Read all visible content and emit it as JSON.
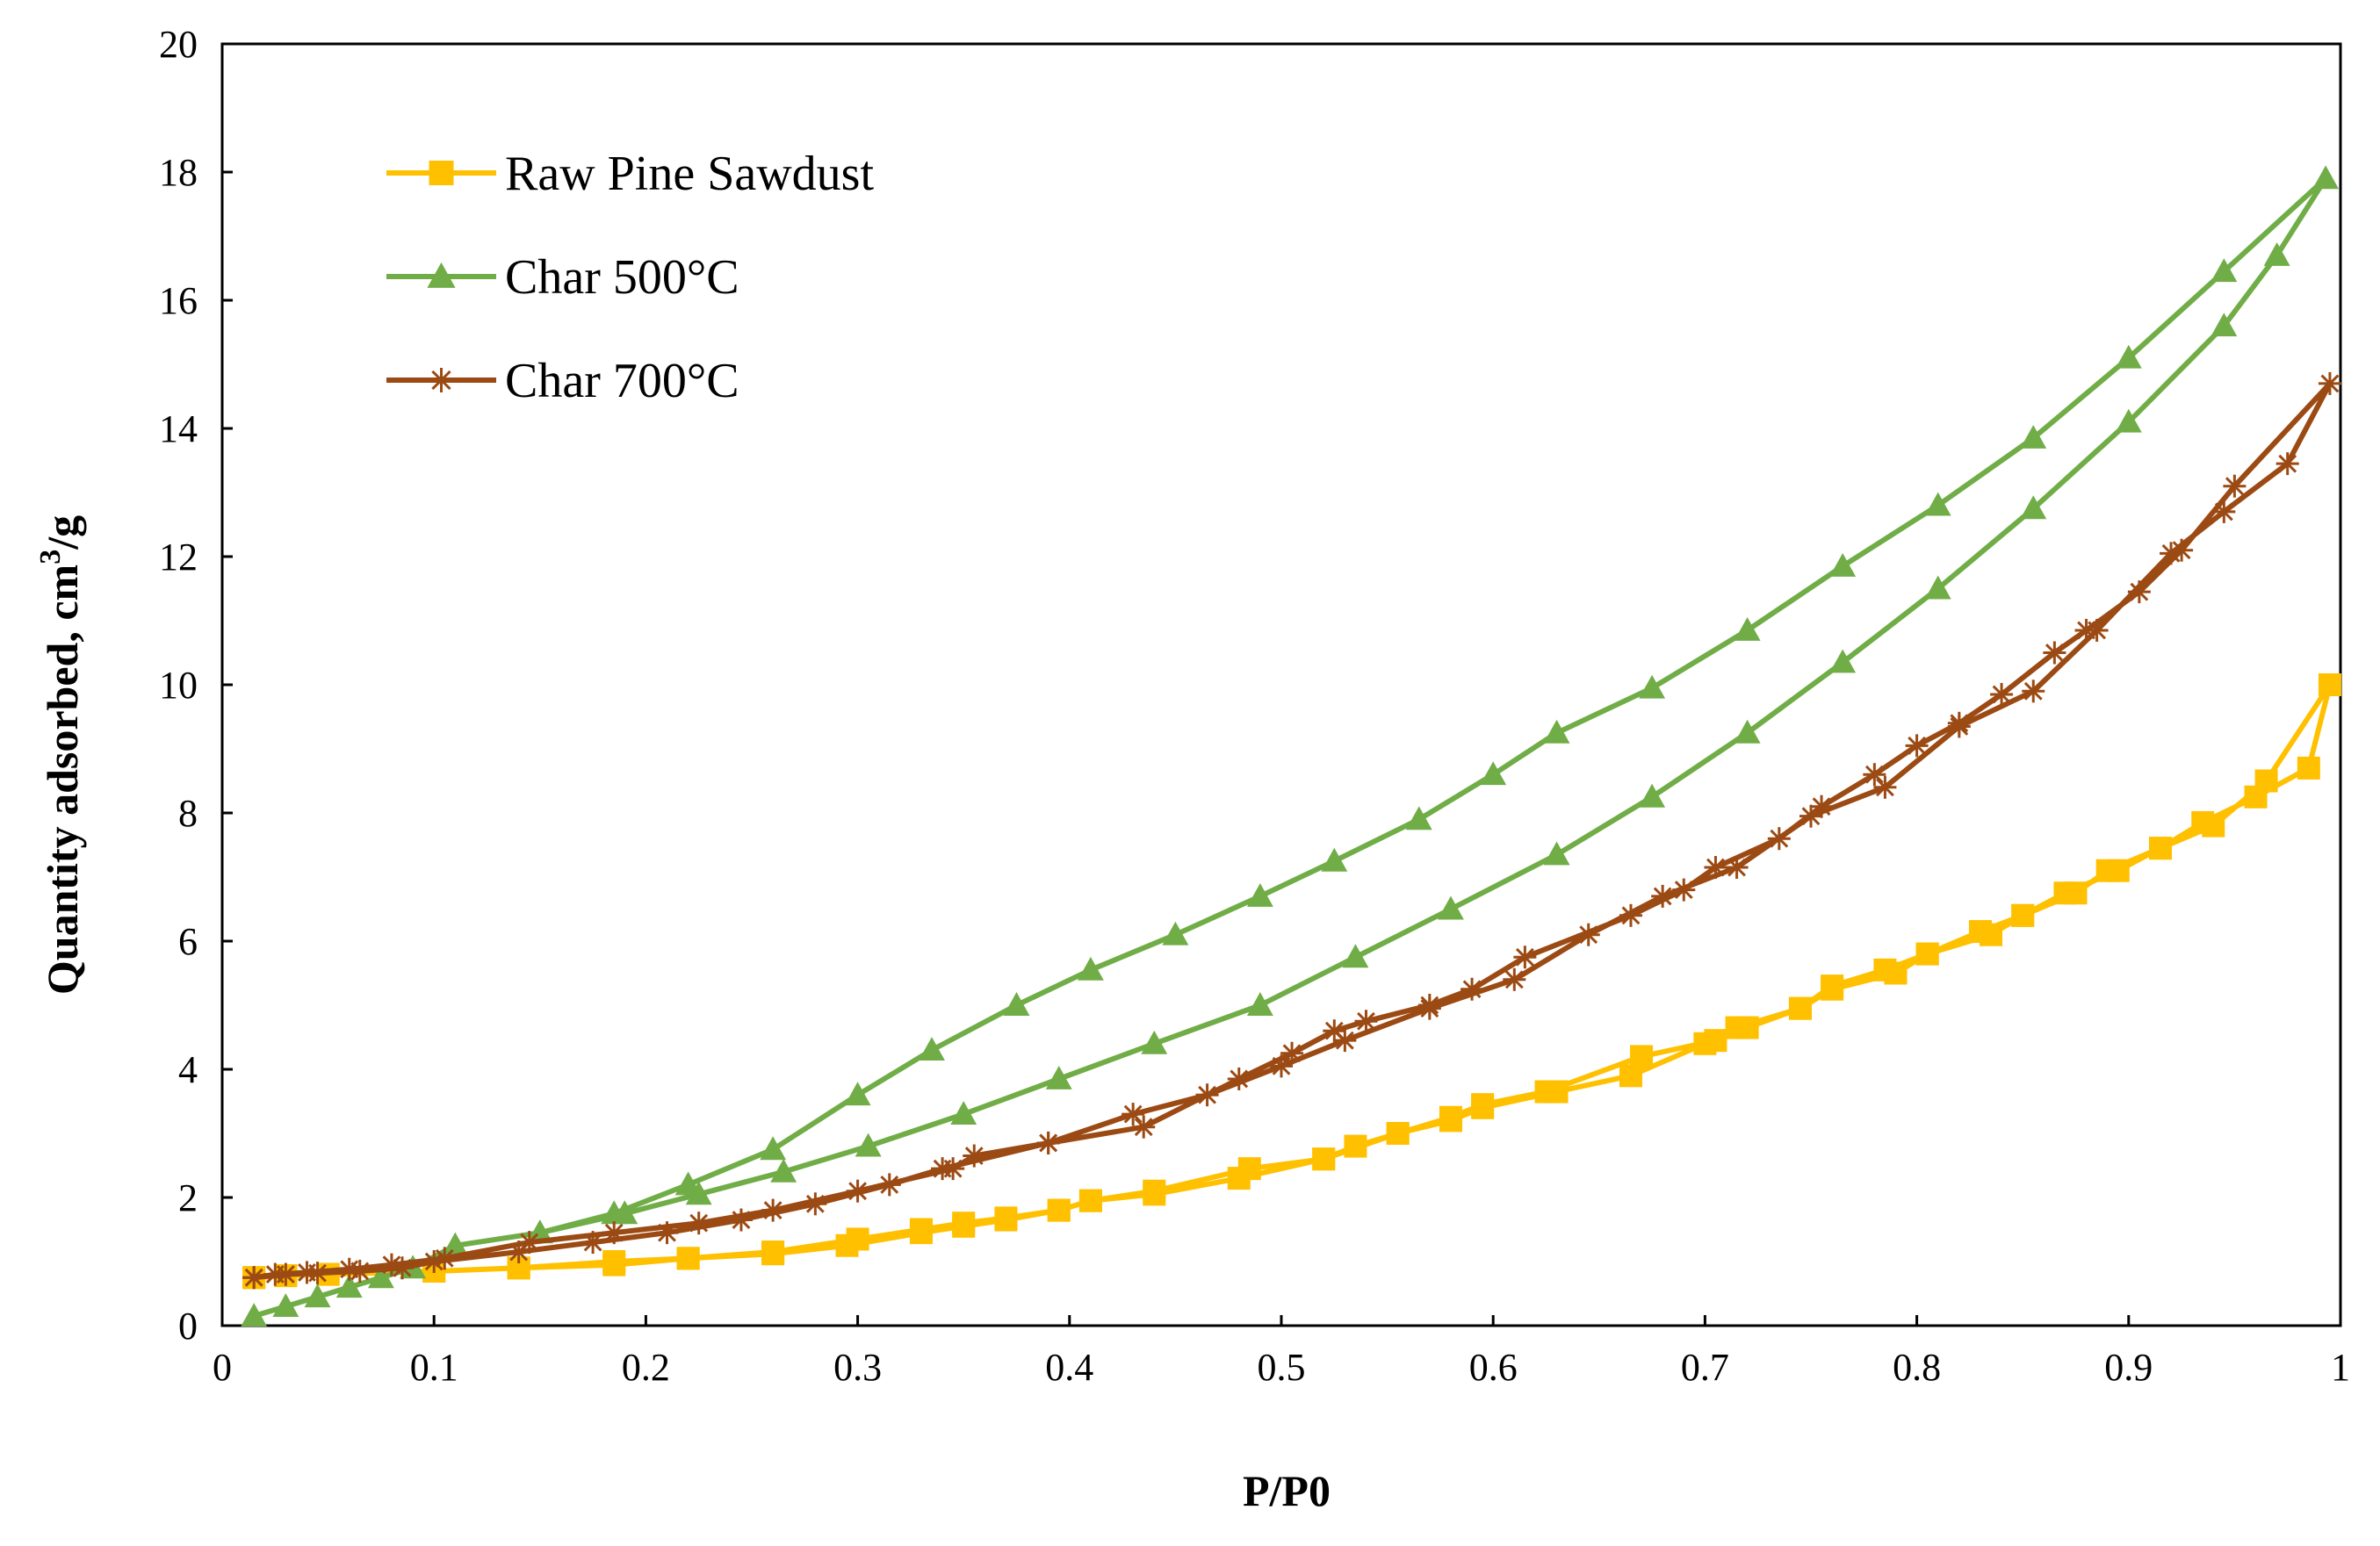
{
  "chart_data": {
    "type": "line",
    "title": "",
    "xlabel": "P/P0",
    "ylabel": "Quantity adsorbed, cm",
    "ylabel_sup": "3",
    "ylabel_suffix": "/g",
    "xlim": [
      0,
      1
    ],
    "ylim": [
      0,
      20
    ],
    "xticks": [
      0,
      0.1,
      0.2,
      0.3,
      0.4,
      0.5,
      0.6,
      0.7,
      0.8,
      0.9,
      1
    ],
    "xtick_labels": [
      "0",
      "0.1",
      "0.2",
      "0.3",
      "0.4",
      "0.5",
      "0.6",
      "0.7",
      "0.8",
      "0.9",
      "1"
    ],
    "yticks": [
      0,
      2,
      4,
      6,
      8,
      10,
      12,
      14,
      16,
      18,
      20
    ],
    "ytick_labels": [
      "0",
      "2",
      "4",
      "6",
      "8",
      "10",
      "12",
      "14",
      "16",
      "18",
      "20"
    ],
    "grid": false,
    "legend_position": "top-left",
    "series": [
      {
        "name": "Raw Pine Sawdust",
        "color": "#FFC000",
        "marker": "square",
        "x": [
          0.015,
          0.03,
          0.05,
          0.1,
          0.14,
          0.185,
          0.22,
          0.26,
          0.3,
          0.33,
          0.35,
          0.37,
          0.395,
          0.41,
          0.44,
          0.485,
          0.52,
          0.535,
          0.555,
          0.58,
          0.595,
          0.625,
          0.67,
          0.705,
          0.72,
          0.745,
          0.76,
          0.79,
          0.805,
          0.835,
          0.85,
          0.875,
          0.89,
          0.915,
          0.935,
          0.96,
          0.985,
          0.995,
          0.965,
          0.94,
          0.915,
          0.895,
          0.87,
          0.85,
          0.83,
          0.805,
          0.785,
          0.76,
          0.745,
          0.715,
          0.7,
          0.665,
          0.63,
          0.595,
          0.58,
          0.555,
          0.52,
          0.48,
          0.44,
          0.41,
          0.395,
          0.37,
          0.35,
          0.33,
          0.295,
          0.26,
          0.22,
          0.185,
          0.14,
          0.1,
          0.05,
          0.03,
          0.015
        ],
        "y": [
          0.75,
          0.78,
          0.8,
          0.85,
          0.9,
          1.0,
          1.05,
          1.15,
          1.35,
          1.5,
          1.6,
          1.68,
          1.8,
          1.95,
          2.1,
          2.45,
          2.6,
          2.8,
          3.0,
          3.25,
          3.45,
          3.65,
          4.2,
          4.45,
          4.65,
          4.95,
          5.25,
          5.5,
          5.8,
          6.1,
          6.4,
          6.75,
          7.1,
          7.45,
          7.85,
          8.25,
          8.7,
          10.0,
          8.5,
          7.8,
          7.45,
          7.1,
          6.75,
          6.4,
          6.15,
          5.8,
          5.55,
          5.3,
          4.95,
          4.65,
          4.4,
          3.9,
          3.65,
          3.4,
          3.2,
          3.0,
          2.6,
          2.3,
          2.05,
          1.95,
          1.8,
          1.65,
          1.55,
          1.45,
          1.25,
          1.12,
          1.05,
          0.95,
          0.9,
          0.85,
          0.8,
          0.78,
          0.75
        ]
      },
      {
        "name": "Char 500°C",
        "color": "#70AD47",
        "marker": "triangle",
        "x": [
          0.015,
          0.03,
          0.045,
          0.06,
          0.075,
          0.09,
          0.11,
          0.15,
          0.19,
          0.225,
          0.265,
          0.305,
          0.35,
          0.395,
          0.44,
          0.49,
          0.535,
          0.58,
          0.63,
          0.675,
          0.72,
          0.765,
          0.81,
          0.855,
          0.9,
          0.945,
          0.97,
          0.993,
          0.945,
          0.9,
          0.855,
          0.81,
          0.765,
          0.72,
          0.675,
          0.63,
          0.6,
          0.565,
          0.525,
          0.49,
          0.45,
          0.41,
          0.375,
          0.335,
          0.3,
          0.26,
          0.22,
          0.185,
          0.15,
          0.11
        ],
        "y": [
          0.15,
          0.3,
          0.45,
          0.6,
          0.75,
          0.9,
          1.25,
          1.45,
          1.75,
          2.05,
          2.4,
          2.8,
          3.3,
          3.85,
          4.4,
          5.0,
          5.75,
          6.5,
          7.35,
          8.25,
          9.25,
          10.35,
          11.5,
          12.75,
          14.1,
          15.6,
          16.7,
          17.9,
          16.45,
          15.1,
          13.85,
          12.8,
          11.85,
          10.85,
          9.95,
          9.25,
          8.6,
          7.9,
          7.25,
          6.7,
          6.1,
          5.55,
          5.0,
          4.3,
          3.6,
          2.75,
          2.2,
          1.75,
          1.45,
          1.25
        ]
      },
      {
        "name": "Char 700°C",
        "color": "#9C4A14",
        "marker": "star",
        "x": [
          0.015,
          0.03,
          0.045,
          0.065,
          0.085,
          0.1,
          0.14,
          0.175,
          0.21,
          0.245,
          0.28,
          0.315,
          0.34,
          0.39,
          0.43,
          0.465,
          0.5,
          0.53,
          0.57,
          0.61,
          0.645,
          0.68,
          0.715,
          0.75,
          0.785,
          0.82,
          0.855,
          0.885,
          0.92,
          0.945,
          0.975,
          0.995,
          0.95,
          0.925,
          0.905,
          0.88,
          0.865,
          0.84,
          0.82,
          0.8,
          0.78,
          0.755,
          0.735,
          0.705,
          0.69,
          0.665,
          0.615,
          0.59,
          0.57,
          0.54,
          0.525,
          0.505,
          0.48,
          0.435,
          0.39,
          0.355,
          0.345,
          0.3,
          0.26,
          0.225,
          0.185,
          0.145,
          0.105,
          0.08,
          0.06,
          0.04,
          0.025,
          0.015
        ],
        "y": [
          0.75,
          0.8,
          0.82,
          0.85,
          0.9,
          1.0,
          1.15,
          1.3,
          1.45,
          1.65,
          1.9,
          2.2,
          2.45,
          2.85,
          3.3,
          3.6,
          4.05,
          4.45,
          4.95,
          5.4,
          6.1,
          6.7,
          7.15,
          7.95,
          8.4,
          9.35,
          9.9,
          10.85,
          12.05,
          12.7,
          13.45,
          14.7,
          13.1,
          12.1,
          11.45,
          10.85,
          10.5,
          9.85,
          9.4,
          9.05,
          8.6,
          8.1,
          7.6,
          7.15,
          6.8,
          6.4,
          5.75,
          5.25,
          5.0,
          4.75,
          4.6,
          4.25,
          3.85,
          3.1,
          2.85,
          2.65,
          2.45,
          2.1,
          1.8,
          1.6,
          1.45,
          1.3,
          1.05,
          0.95,
          0.88,
          0.83,
          0.8,
          0.75
        ]
      }
    ]
  }
}
